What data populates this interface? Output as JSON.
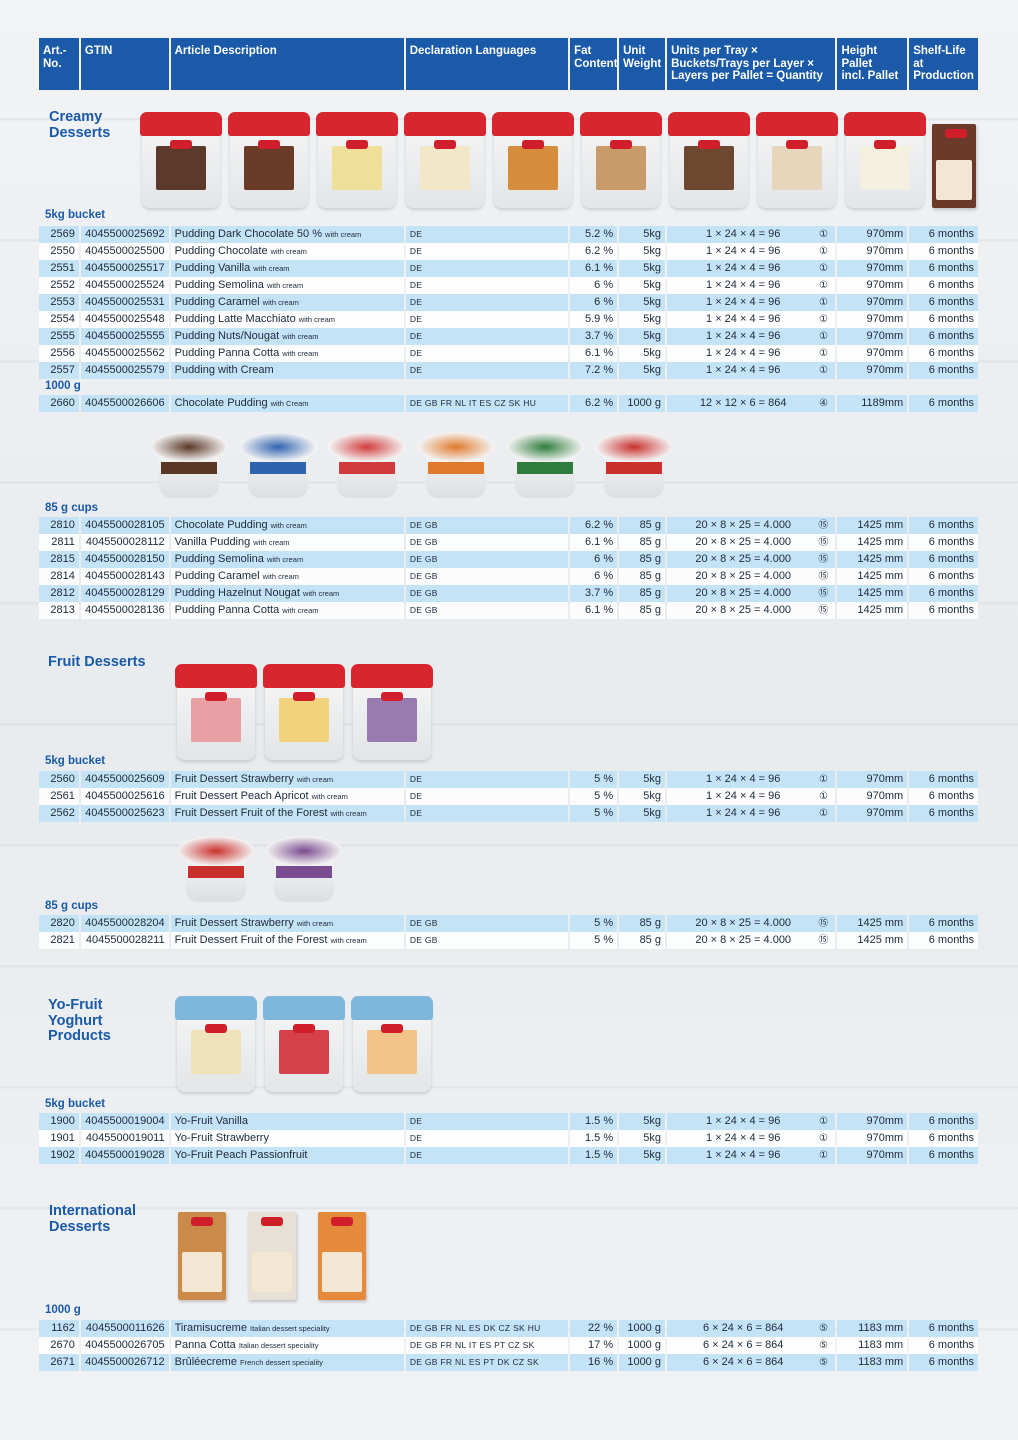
{
  "header": {
    "art_no": "Art.-\nNo.",
    "gtin": "GTIN",
    "description": "Article Description",
    "languages": "Declaration Languages",
    "fat": "Fat\nContent",
    "unit_weight": "Unit\nWeight",
    "units": "Units per Tray ×\nBuckets/Trays per Layer ×\nLayers per Pallet = Quantity",
    "height": "Height\nPallet\nincl. Pallet",
    "shelf": "Shelf-Life\nat\nProduction"
  },
  "sections": {
    "creamy": {
      "title": "Creamy\nDesserts",
      "group1": "5kg bucket",
      "group2": "1000 g",
      "group3": "85 g cups",
      "rows1": [
        {
          "art": "2569",
          "gtin": "4045500025692",
          "name": "Pudding Dark Chocolate 50 %",
          "note": "with cream",
          "lang": "DE",
          "fat": "5.2 %",
          "weight": "5kg",
          "qty": "1 × 24 × 4 = 96",
          "pallet": "①",
          "height": "970mm",
          "shelf": "6 months"
        },
        {
          "art": "2550",
          "gtin": "4045500025500",
          "name": "Pudding Chocolate",
          "note": "with cream",
          "lang": "DE",
          "fat": "6.2 %",
          "weight": "5kg",
          "qty": "1 × 24 × 4 = 96",
          "pallet": "①",
          "height": "970mm",
          "shelf": "6 months"
        },
        {
          "art": "2551",
          "gtin": "4045500025517",
          "name": "Pudding Vanilla",
          "note": "with cream",
          "lang": "DE",
          "fat": "6.1 %",
          "weight": "5kg",
          "qty": "1 × 24 × 4 = 96",
          "pallet": "①",
          "height": "970mm",
          "shelf": "6 months"
        },
        {
          "art": "2552",
          "gtin": "4045500025524",
          "name": "Pudding Semolina",
          "note": "with cream",
          "lang": "DE",
          "fat": "6 %",
          "weight": "5kg",
          "qty": "1 × 24 × 4 = 96",
          "pallet": "①",
          "height": "970mm",
          "shelf": "6 months"
        },
        {
          "art": "2553",
          "gtin": "4045500025531",
          "name": "Pudding Caramel",
          "note": "with cream",
          "lang": "DE",
          "fat": "6 %",
          "weight": "5kg",
          "qty": "1 × 24 × 4 = 96",
          "pallet": "①",
          "height": "970mm",
          "shelf": "6 months"
        },
        {
          "art": "2554",
          "gtin": "4045500025548",
          "name": "Pudding Latte Macchiato",
          "note": "with cream",
          "lang": "DE",
          "fat": "5.9 %",
          "weight": "5kg",
          "qty": "1 × 24 × 4 = 96",
          "pallet": "①",
          "height": "970mm",
          "shelf": "6 months"
        },
        {
          "art": "2555",
          "gtin": "4045500025555",
          "name": "Pudding Nuts/Nougat",
          "note": "with cream",
          "lang": "DE",
          "fat": "3.7 %",
          "weight": "5kg",
          "qty": "1 × 24 × 4 = 96",
          "pallet": "①",
          "height": "970mm",
          "shelf": "6 months"
        },
        {
          "art": "2556",
          "gtin": "4045500025562",
          "name": "Pudding Panna Cotta",
          "note": "with cream",
          "lang": "DE",
          "fat": "6.1 %",
          "weight": "5kg",
          "qty": "1 × 24 × 4 = 96",
          "pallet": "①",
          "height": "970mm",
          "shelf": "6 months"
        },
        {
          "art": "2557",
          "gtin": "4045500025579",
          "name": "Pudding with Cream",
          "note": "",
          "lang": "DE",
          "fat": "7.2 %",
          "weight": "5kg",
          "qty": "1 × 24 × 4 = 96",
          "pallet": "①",
          "height": "970mm",
          "shelf": "6 months"
        }
      ],
      "rows2": [
        {
          "art": "2660",
          "gtin": "4045500026606",
          "name": "Chocolate Pudding",
          "note": "with Cream",
          "lang": "DE GB FR NL IT ES CZ SK HU",
          "fat": "6.2 %",
          "weight": "1000 g",
          "qty": "12 × 12 × 6 = 864",
          "pallet": "④",
          "height": "1189mm",
          "shelf": "6 months"
        }
      ],
      "rows3": [
        {
          "art": "2810",
          "gtin": "4045500028105",
          "name": "Chocolate Pudding",
          "note": "with cream",
          "lang": "DE GB",
          "fat": "6.2 %",
          "weight": "85 g",
          "qty": "20 × 8 × 25 = 4.000",
          "pallet": "⑮",
          "height": "1425 mm",
          "shelf": "6 months"
        },
        {
          "art": "2811",
          "gtin": "4045500028112",
          "name": "Vanilla Pudding",
          "note": "with cream",
          "lang": "DE GB",
          "fat": "6.1 %",
          "weight": "85 g",
          "qty": "20 × 8 × 25 = 4.000",
          "pallet": "⑮",
          "height": "1425 mm",
          "shelf": "6 months"
        },
        {
          "art": "2815",
          "gtin": "4045500028150",
          "name": "Pudding Semolina",
          "note": "with cream",
          "lang": "DE GB",
          "fat": "6 %",
          "weight": "85 g",
          "qty": "20 × 8 × 25 = 4.000",
          "pallet": "⑮",
          "height": "1425 mm",
          "shelf": "6 months"
        },
        {
          "art": "2814",
          "gtin": "4045500028143",
          "name": "Pudding Caramel",
          "note": "with cream",
          "lang": "DE GB",
          "fat": "6 %",
          "weight": "85 g",
          "qty": "20 × 8 × 25 = 4.000",
          "pallet": "⑮",
          "height": "1425 mm",
          "shelf": "6 months"
        },
        {
          "art": "2812",
          "gtin": "4045500028129",
          "name": "Pudding Hazelnut Nougat",
          "note": "with cream",
          "lang": "DE GB",
          "fat": "3.7 %",
          "weight": "85 g",
          "qty": "20 × 8 × 25 = 4.000",
          "pallet": "⑮",
          "height": "1425 mm",
          "shelf": "6 months"
        },
        {
          "art": "2813",
          "gtin": "4045500028136",
          "name": "Pudding Panna Cotta",
          "note": "with cream",
          "lang": "DE GB",
          "fat": "6.1 %",
          "weight": "85 g",
          "qty": "20 × 8 × 25 = 4.000",
          "pallet": "⑮",
          "height": "1425 mm",
          "shelf": "6 months"
        }
      ]
    },
    "fruit": {
      "title": "Fruit Desserts",
      "group1": "5kg bucket",
      "group2": "85 g cups",
      "rows1": [
        {
          "art": "2560",
          "gtin": "4045500025609",
          "name": "Fruit Dessert Strawberry",
          "note": "with cream",
          "lang": "DE",
          "fat": "5 %",
          "weight": "5kg",
          "qty": "1 × 24 × 4 = 96",
          "pallet": "①",
          "height": "970mm",
          "shelf": "6 months"
        },
        {
          "art": "2561",
          "gtin": "4045500025616",
          "name": "Fruit Dessert Peach Apricot",
          "note": "with cream",
          "lang": "DE",
          "fat": "5 %",
          "weight": "5kg",
          "qty": "1 × 24 × 4 = 96",
          "pallet": "①",
          "height": "970mm",
          "shelf": "6 months"
        },
        {
          "art": "2562",
          "gtin": "4045500025623",
          "name": "Fruit Dessert Fruit of the Forest",
          "note": "with cream",
          "lang": "DE",
          "fat": "5 %",
          "weight": "5kg",
          "qty": "1 × 24 × 4 = 96",
          "pallet": "①",
          "height": "970mm",
          "shelf": "6 months"
        }
      ],
      "rows2": [
        {
          "art": "2820",
          "gtin": "4045500028204",
          "name": "Fruit Dessert Strawberry",
          "note": "with cream",
          "lang": "DE GB",
          "fat": "5 %",
          "weight": "85 g",
          "qty": "20 × 8 × 25 = 4.000",
          "pallet": "⑮",
          "height": "1425 mm",
          "shelf": "6 months"
        },
        {
          "art": "2821",
          "gtin": "4045500028211",
          "name": "Fruit Dessert Fruit of the Forest",
          "note": "with cream",
          "lang": "DE GB",
          "fat": "5 %",
          "weight": "85 g",
          "qty": "20 × 8 × 25 = 4.000",
          "pallet": "⑮",
          "height": "1425 mm",
          "shelf": "6 months"
        }
      ]
    },
    "yofruit": {
      "title": "Yo-Fruit\nYoghurt\nProducts",
      "group1": "5kg bucket",
      "rows1": [
        {
          "art": "1900",
          "gtin": "4045500019004",
          "name": "Yo-Fruit Vanilla",
          "note": "",
          "lang": "DE",
          "fat": "1.5 %",
          "weight": "5kg",
          "qty": "1 × 24 × 4 = 96",
          "pallet": "①",
          "height": "970mm",
          "shelf": "6 months"
        },
        {
          "art": "1901",
          "gtin": "4045500019011",
          "name": "Yo-Fruit Strawberry",
          "note": "",
          "lang": "DE",
          "fat": "1.5 %",
          "weight": "5kg",
          "qty": "1 × 24 × 4 = 96",
          "pallet": "①",
          "height": "970mm",
          "shelf": "6 months"
        },
        {
          "art": "1902",
          "gtin": "4045500019028",
          "name": "Yo-Fruit Peach Passionfruit",
          "note": "",
          "lang": "DE",
          "fat": "1.5 %",
          "weight": "5kg",
          "qty": "1 × 24 × 4 = 96",
          "pallet": "①",
          "height": "970mm",
          "shelf": "6 months"
        }
      ]
    },
    "international": {
      "title": "International\nDesserts",
      "group1": "1000 g",
      "rows1": [
        {
          "art": "1162",
          "gtin": "4045500011626",
          "name": "Tiramisucreme",
          "note": "Italian dessert speciality",
          "lang": "DE GB FR NL ES DK CZ SK HU",
          "fat": "22 %",
          "weight": "1000 g",
          "qty": "6 × 24 × 6 = 864",
          "pallet": "⑤",
          "height": "1183 mm",
          "shelf": "6 months"
        },
        {
          "art": "2670",
          "gtin": "4045500026705",
          "name": "Panna Cotta",
          "note": "Italian dessert speciality",
          "lang": "DE GB FR NL IT ES PT CZ SK",
          "fat": "17 %",
          "weight": "1000 g",
          "qty": "6 × 24 × 6 = 864",
          "pallet": "⑤",
          "height": "1183 mm",
          "shelf": "6 months"
        },
        {
          "art": "2671",
          "gtin": "4045500026712",
          "name": "Brûléecreme",
          "note": "French dessert speciality",
          "lang": "DE GB FR NL ES PT DK CZ SK",
          "fat": "16 %",
          "weight": "1000 g",
          "qty": "6 × 24 × 6 = 864",
          "pallet": "⑤",
          "height": "1183 mm",
          "shelf": "6 months"
        }
      ]
    }
  },
  "colors": {
    "header_blue": "#1a5aa8",
    "row_blue": "#c5e3f6",
    "bucket_lid_red": "#d8262f",
    "bucket_lid_blue": "#7fb6dc"
  }
}
